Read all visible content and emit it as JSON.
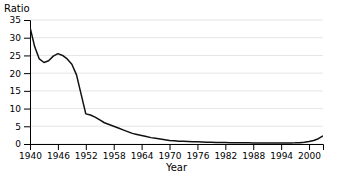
{
  "chart_data": {
    "type": "line",
    "xlabel": "Year",
    "ylabel": "Ratio",
    "x": [
      1940,
      1941,
      1942,
      1943,
      1944,
      1945,
      1946,
      1947,
      1948,
      1949,
      1950,
      1951,
      1952,
      1953,
      1954,
      1955,
      1956,
      1957,
      1958,
      1959,
      1960,
      1961,
      1962,
      1963,
      1964,
      1965,
      1966,
      1967,
      1968,
      1969,
      1970,
      1971,
      1972,
      1973,
      1974,
      1975,
      1976,
      1977,
      1978,
      1979,
      1980,
      1981,
      1982,
      1983,
      1984,
      1985,
      1986,
      1987,
      1988,
      1989,
      1990,
      1991,
      1992,
      1993,
      1994,
      1995,
      1996,
      1997,
      1998,
      1999,
      2000,
      2001,
      2002,
      2003
    ],
    "values": [
      33.0,
      27.5,
      24.0,
      23.0,
      23.5,
      24.8,
      25.5,
      25.0,
      24.0,
      22.5,
      19.5,
      14.0,
      8.5,
      8.2,
      7.6,
      6.8,
      6.0,
      5.5,
      5.0,
      4.5,
      4.0,
      3.5,
      3.0,
      2.7,
      2.4,
      2.1,
      1.8,
      1.6,
      1.4,
      1.2,
      1.0,
      0.9,
      0.8,
      0.75,
      0.7,
      0.65,
      0.6,
      0.55,
      0.5,
      0.48,
      0.45,
      0.42,
      0.4,
      0.38,
      0.36,
      0.34,
      0.33,
      0.32,
      0.31,
      0.3,
      0.29,
      0.28,
      0.28,
      0.28,
      0.28,
      0.29,
      0.3,
      0.32,
      0.38,
      0.5,
      0.7,
      1.0,
      1.5,
      2.3
    ],
    "color": "#111111",
    "xlim": [
      1940,
      2003
    ],
    "ylim": [
      0,
      35
    ],
    "xticks": [
      1940,
      1946,
      1952,
      1958,
      1964,
      1970,
      1976,
      1982,
      1988,
      1994,
      2000
    ],
    "yticks": [
      0,
      5,
      10,
      15,
      20,
      25,
      30,
      35
    ],
    "grid": true
  }
}
